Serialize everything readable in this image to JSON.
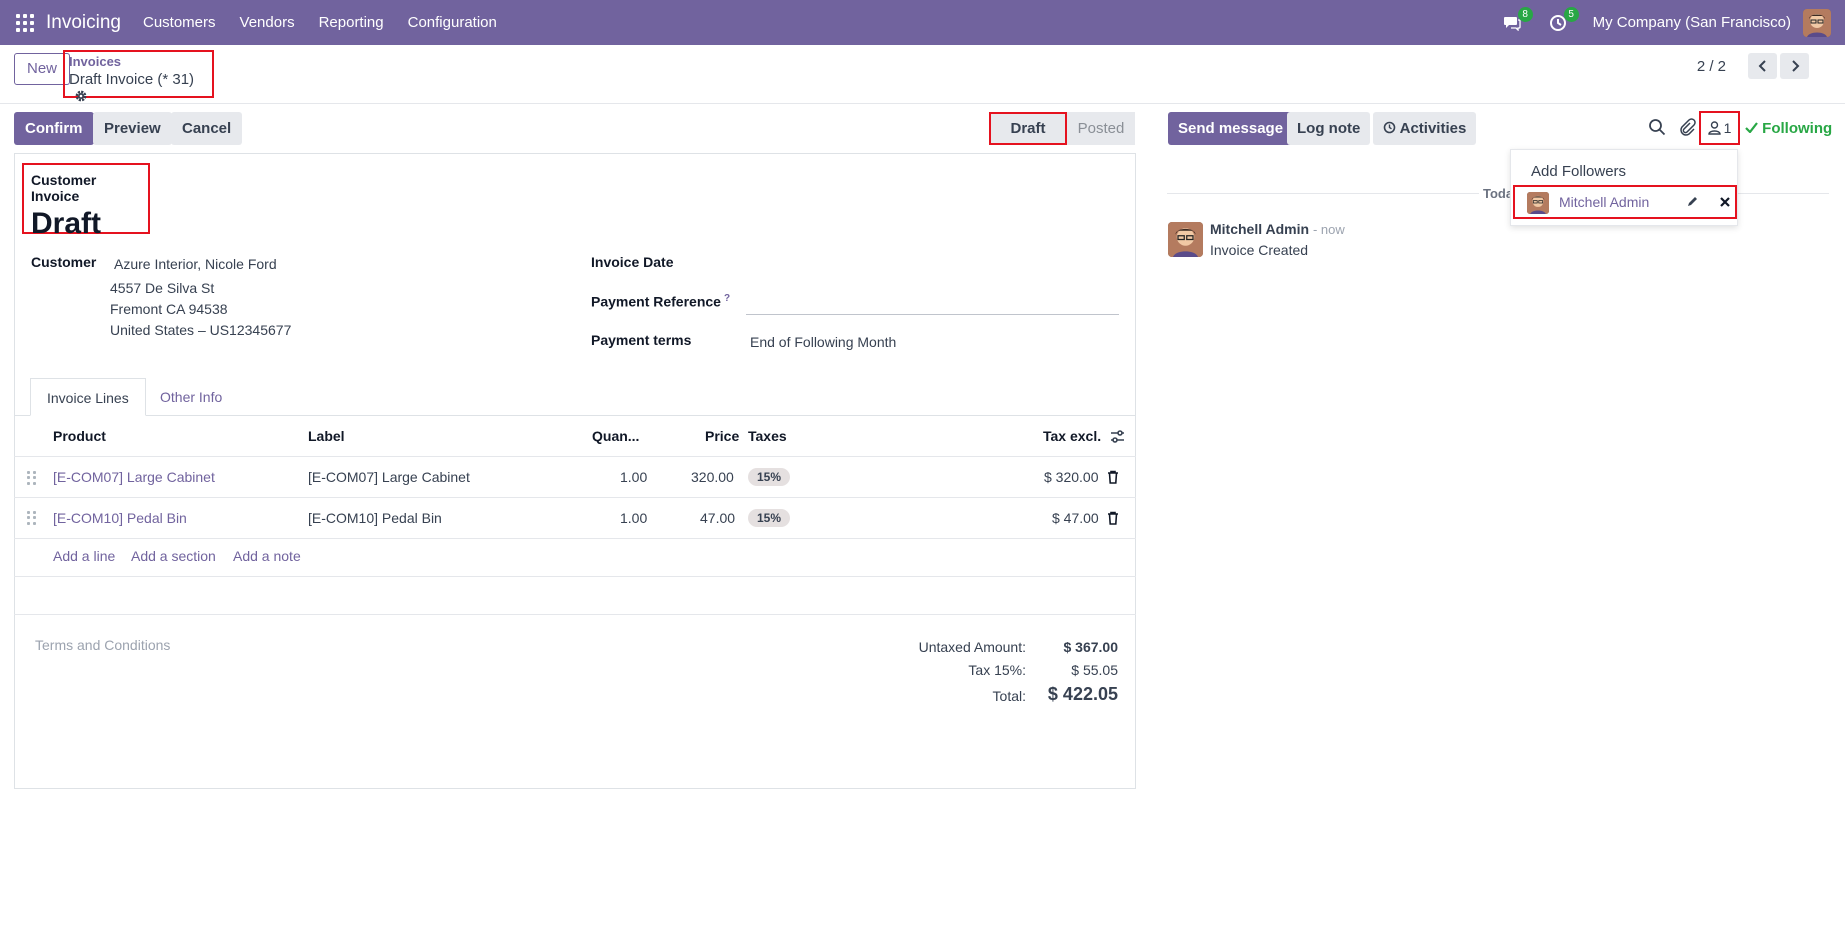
{
  "navbar": {
    "app_name": "Invoicing",
    "menu": [
      "Customers",
      "Vendors",
      "Reporting",
      "Configuration"
    ],
    "messages_count": "8",
    "activities_count": "5",
    "company": "My Company (San Francisco)"
  },
  "control": {
    "new_label": "New",
    "breadcrumb_parent": "Invoices",
    "breadcrumb_current": "Draft Invoice (* 31)",
    "pager": "2 / 2"
  },
  "actions": {
    "confirm": "Confirm",
    "preview": "Preview",
    "cancel": "Cancel"
  },
  "status": {
    "draft": "Draft",
    "posted": "Posted"
  },
  "invoice": {
    "type": "Customer Invoice",
    "state": "Draft",
    "customer_label": "Customer",
    "customer_name": "Azure Interior, Nicole Ford",
    "address1": "4557 De Silva St",
    "address2": "Fremont CA 94538",
    "address3": "United States – US12345677",
    "invoice_date_label": "Invoice Date",
    "payment_ref_label": "Payment Reference",
    "payment_ref_help": "?",
    "payment_terms_label": "Payment terms",
    "payment_terms_value": "End of Following Month"
  },
  "tabs": [
    "Invoice Lines",
    "Other Info"
  ],
  "table": {
    "headers": {
      "product": "Product",
      "label": "Label",
      "quantity": "Quan...",
      "price": "Price",
      "taxes": "Taxes",
      "tax_excl": "Tax excl."
    },
    "rows": [
      {
        "product": "[E-COM07] Large Cabinet",
        "label": "[E-COM07] Large Cabinet",
        "quantity": "1.00",
        "price": "320.00",
        "tax": "15%",
        "subtotal": "$ 320.00"
      },
      {
        "product": "[E-COM10] Pedal Bin",
        "label": "[E-COM10] Pedal Bin",
        "quantity": "1.00",
        "price": "47.00",
        "tax": "15%",
        "subtotal": "$ 47.00"
      }
    ],
    "add_line": "Add a line",
    "add_section": "Add a section",
    "add_note": "Add a note"
  },
  "terms_placeholder": "Terms and Conditions",
  "totals": {
    "untaxed_label": "Untaxed Amount:",
    "untaxed_value": "$ 367.00",
    "tax_label": "Tax 15%:",
    "tax_value": "$ 55.05",
    "total_label": "Total:",
    "total_value": "$ 422.05"
  },
  "chatter": {
    "send_message": "Send message",
    "log_note": "Log note",
    "activities": "Activities",
    "followers_count": "1",
    "following": "Following",
    "add_followers": "Add Followers",
    "follower_name": "Mitchell Admin",
    "today": "Today",
    "message_author": "Mitchell Admin",
    "message_time": "- now",
    "message_body": "Invoice Created"
  },
  "colors": {
    "brand": "#71639e",
    "highlight": "#e5121f",
    "following": "#28a745"
  }
}
